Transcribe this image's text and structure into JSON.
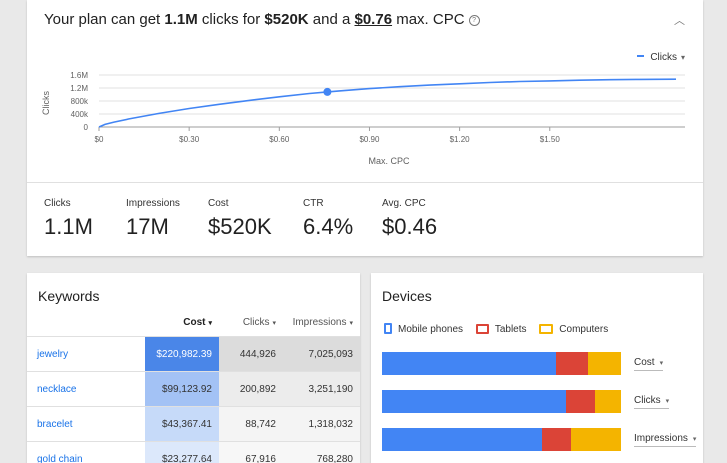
{
  "plan": {
    "headline_pre": "Your plan can get ",
    "clicks": "1.1M",
    "headline_mid1": " clicks for ",
    "cost": "$520K",
    "headline_mid2": " and a ",
    "cpc": "$0.76",
    "headline_post": " max. CPC",
    "help_icon": "?",
    "collapse_icon": "︿",
    "metric_select": "Clicks",
    "caret": "▾"
  },
  "chart_data": {
    "type": "line",
    "xlabel": "Max. CPC",
    "ylabel": "Clicks",
    "x_ticks": [
      "$0",
      "$0.30",
      "$0.60",
      "$0.90",
      "$1.20",
      "$1.50"
    ],
    "x_tick_values": [
      0,
      0.3,
      0.6,
      0.9,
      1.2,
      1.5
    ],
    "y_ticks": [
      "0",
      "400k",
      "800k",
      "1.2M",
      "1.6M"
    ],
    "y_tick_values": [
      0,
      400000,
      800000,
      1200000,
      1600000
    ],
    "xlim": [
      0,
      1.95
    ],
    "ylim": [
      0,
      1600000
    ],
    "grid": true,
    "series": [
      {
        "x": [
          0,
          0.02,
          0.05,
          0.1,
          0.2,
          0.3,
          0.4,
          0.5,
          0.6,
          0.7,
          0.76,
          0.8,
          0.9,
          1.0,
          1.1,
          1.2,
          1.3,
          1.4,
          1.5,
          1.6,
          1.7,
          1.8,
          1.92
        ],
        "y": [
          0,
          80000,
          150000,
          250000,
          420000,
          570000,
          700000,
          820000,
          930000,
          1030000,
          1080000,
          1110000,
          1180000,
          1240000,
          1290000,
          1330000,
          1370000,
          1400000,
          1420000,
          1440000,
          1455000,
          1465000,
          1470000
        ]
      }
    ],
    "marker": {
      "x": 0.76,
      "y": 1080000
    },
    "colors": {
      "line": "#4285f4",
      "grid": "#e0e0e0",
      "axis": "#9e9e9e"
    }
  },
  "stats": [
    {
      "label": "Clicks",
      "value": "1.1M"
    },
    {
      "label": "Impressions",
      "value": "17M"
    },
    {
      "label": "Cost",
      "value": "$520K"
    },
    {
      "label": "CTR",
      "value": "6.4%"
    },
    {
      "label": "Avg. CPC",
      "value": "$0.46"
    }
  ],
  "keywords": {
    "title": "Keywords",
    "columns": [
      "Cost",
      "Clicks",
      "Impressions"
    ],
    "rows": [
      {
        "keyword": "jewelry",
        "cost": "$220,982.39",
        "clicks": "444,926",
        "impressions": "7,025,093"
      },
      {
        "keyword": "necklace",
        "cost": "$99,123.92",
        "clicks": "200,892",
        "impressions": "3,251,190"
      },
      {
        "keyword": "bracelet",
        "cost": "$43,367.41",
        "clicks": "88,742",
        "impressions": "1,318,032"
      },
      {
        "keyword": "gold chain",
        "cost": "$23,277.64",
        "clicks": "67,916",
        "impressions": "768,280"
      }
    ]
  },
  "devices": {
    "title": "Devices",
    "legend": [
      "Mobile phones",
      "Tablets",
      "Computers"
    ],
    "colors": {
      "mobile": "#4285f4",
      "tablets": "#db4437",
      "computers": "#f4b400"
    },
    "bars": [
      {
        "metric": "Cost",
        "mobile": 0.73,
        "tablets": 0.13,
        "computers": 0.14
      },
      {
        "metric": "Clicks",
        "mobile": 0.77,
        "tablets": 0.12,
        "computers": 0.11
      },
      {
        "metric": "Impressions",
        "mobile": 0.67,
        "tablets": 0.12,
        "computers": 0.21
      }
    ]
  }
}
